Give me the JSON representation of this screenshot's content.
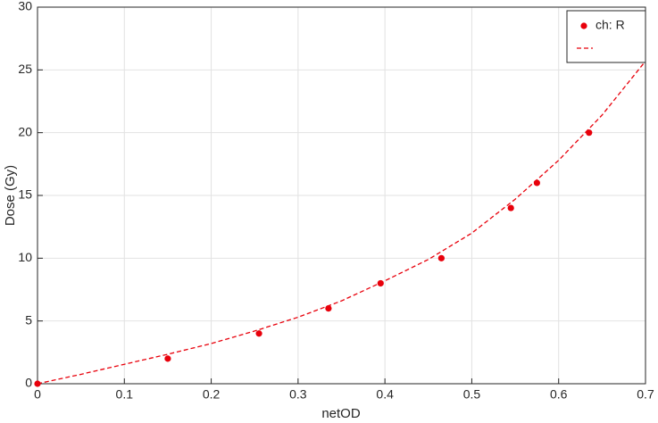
{
  "chart_data": {
    "type": "scatter",
    "x_label": "netOD",
    "y_label": "Dose (Gy)",
    "xlim": [
      0,
      0.7
    ],
    "ylim": [
      0,
      30
    ],
    "xticks": [
      0,
      0.1,
      0.2,
      0.3,
      0.4,
      0.5,
      0.6,
      0.7
    ],
    "yticks": [
      0,
      5,
      10,
      15,
      20,
      25,
      30
    ],
    "grid": true,
    "legend": "upper-right",
    "series": [
      {
        "name": "ch: R",
        "color": "#e8000b",
        "style": "marker",
        "x": [
          0,
          0.15,
          0.255,
          0.335,
          0.395,
          0.465,
          0.545,
          0.575,
          0.635
        ],
        "values": [
          0,
          2,
          4,
          6,
          8,
          10,
          14,
          16,
          20
        ]
      },
      {
        "color": "#e8000b",
        "style": "dashed",
        "x": [
          0,
          0.05,
          0.1,
          0.15,
          0.2,
          0.25,
          0.3,
          0.35,
          0.4,
          0.45,
          0.5,
          0.55,
          0.6,
          0.65,
          0.7
        ],
        "values": [
          0,
          0.75,
          1.55,
          2.35,
          3.2,
          4.2,
          5.3,
          6.6,
          8.2,
          9.9,
          12.0,
          14.7,
          17.8,
          21.4,
          25.7
        ]
      }
    ]
  }
}
